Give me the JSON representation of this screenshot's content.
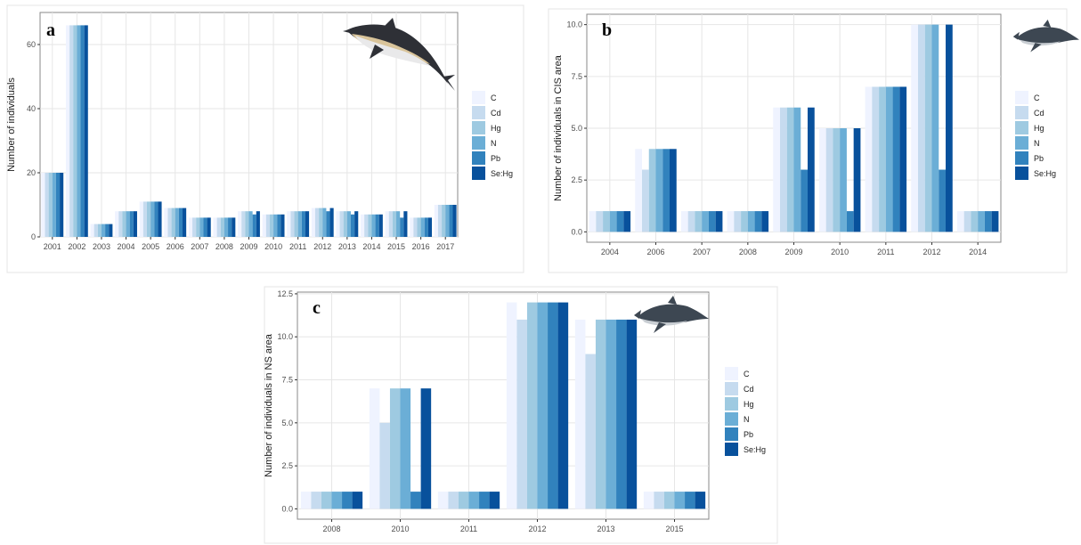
{
  "series_colors": {
    "C": "#eff3ff",
    "Cd": "#c6dbef",
    "Hg": "#9ecae1",
    "N": "#6baed6",
    "Pb": "#3182bd",
    "Se:Hg": "#08519c"
  },
  "chart_data": [
    {
      "panel": "a",
      "type": "bar",
      "xlabel": "",
      "ylabel": "Number of individuals",
      "ylim": [
        0,
        70
      ],
      "yticks": [
        0,
        20,
        40,
        60
      ],
      "grid": true,
      "legend_position": "right",
      "icon": "common-dolphin-icon",
      "categories": [
        "2001",
        "2002",
        "2003",
        "2004",
        "2005",
        "2006",
        "2007",
        "2008",
        "2009",
        "2010",
        "2011",
        "2012",
        "2013",
        "2014",
        "2015",
        "2016",
        "2017"
      ],
      "series": [
        {
          "name": "C",
          "values": [
            20,
            66,
            4,
            8,
            11,
            9,
            6,
            6,
            8,
            7,
            8,
            9,
            8,
            7,
            8,
            6,
            10
          ]
        },
        {
          "name": "Cd",
          "values": [
            20,
            66,
            4,
            8,
            11,
            9,
            6,
            6,
            8,
            7,
            8,
            9,
            8,
            7,
            8,
            6,
            10
          ]
        },
        {
          "name": "Hg",
          "values": [
            20,
            66,
            4,
            8,
            11,
            9,
            6,
            6,
            8,
            7,
            8,
            9,
            8,
            7,
            8,
            6,
            10
          ]
        },
        {
          "name": "N",
          "values": [
            20,
            66,
            4,
            8,
            11,
            9,
            6,
            6,
            8,
            7,
            8,
            9,
            8,
            7,
            8,
            6,
            10
          ]
        },
        {
          "name": "Pb",
          "values": [
            20,
            66,
            4,
            8,
            11,
            9,
            6,
            6,
            7,
            7,
            8,
            8,
            7,
            7,
            6,
            6,
            10
          ]
        },
        {
          "name": "Se:Hg",
          "values": [
            20,
            66,
            4,
            8,
            11,
            9,
            6,
            6,
            8,
            7,
            8,
            9,
            8,
            7,
            8,
            6,
            10
          ]
        }
      ]
    },
    {
      "panel": "b",
      "type": "bar",
      "xlabel": "",
      "ylabel": "Number of individuals in CIS area",
      "ylim": [
        -0.5,
        10.5
      ],
      "yticks": [
        0.0,
        2.5,
        5.0,
        7.5,
        10.0
      ],
      "ytick_labels": [
        "0.0",
        "2.5",
        "5.0",
        "7.5",
        "10.0"
      ],
      "grid": true,
      "legend_position": "right",
      "icon": "porpoise-icon",
      "categories": [
        "2004",
        "2006",
        "2007",
        "2008",
        "2009",
        "2010",
        "2011",
        "2012",
        "2014"
      ],
      "series": [
        {
          "name": "C",
          "values": [
            1,
            4,
            1,
            1,
            6,
            5,
            7,
            10,
            1
          ]
        },
        {
          "name": "Cd",
          "values": [
            1,
            3,
            1,
            1,
            6,
            5,
            7,
            10,
            1
          ]
        },
        {
          "name": "Hg",
          "values": [
            1,
            4,
            1,
            1,
            6,
            5,
            7,
            10,
            1
          ]
        },
        {
          "name": "N",
          "values": [
            1,
            4,
            1,
            1,
            6,
            5,
            7,
            10,
            1
          ]
        },
        {
          "name": "Pb",
          "values": [
            1,
            4,
            1,
            1,
            3,
            1,
            7,
            3,
            1
          ]
        },
        {
          "name": "Se:Hg",
          "values": [
            1,
            4,
            1,
            1,
            6,
            5,
            7,
            10,
            1
          ]
        }
      ]
    },
    {
      "panel": "c",
      "type": "bar",
      "xlabel": "",
      "ylabel": "Number of individuals in NS area",
      "ylim": [
        -0.6,
        12.6
      ],
      "yticks": [
        0.0,
        2.5,
        5.0,
        7.5,
        10.0,
        12.5
      ],
      "ytick_labels": [
        "0.0",
        "2.5",
        "5.0",
        "7.5",
        "10.0",
        "12.5"
      ],
      "grid": true,
      "legend_position": "right",
      "icon": "porpoise-icon",
      "categories": [
        "2008",
        "2010",
        "2011",
        "2012",
        "2013",
        "2015"
      ],
      "series": [
        {
          "name": "C",
          "values": [
            1,
            7,
            1,
            12,
            11,
            1
          ]
        },
        {
          "name": "Cd",
          "values": [
            1,
            5,
            1,
            11,
            9,
            1
          ]
        },
        {
          "name": "Hg",
          "values": [
            1,
            7,
            1,
            12,
            11,
            1
          ]
        },
        {
          "name": "N",
          "values": [
            1,
            7,
            1,
            12,
            11,
            1
          ]
        },
        {
          "name": "Pb",
          "values": [
            1,
            1,
            1,
            12,
            11,
            1
          ]
        },
        {
          "name": "Se:Hg",
          "values": [
            1,
            7,
            1,
            12,
            11,
            1
          ]
        }
      ]
    }
  ]
}
